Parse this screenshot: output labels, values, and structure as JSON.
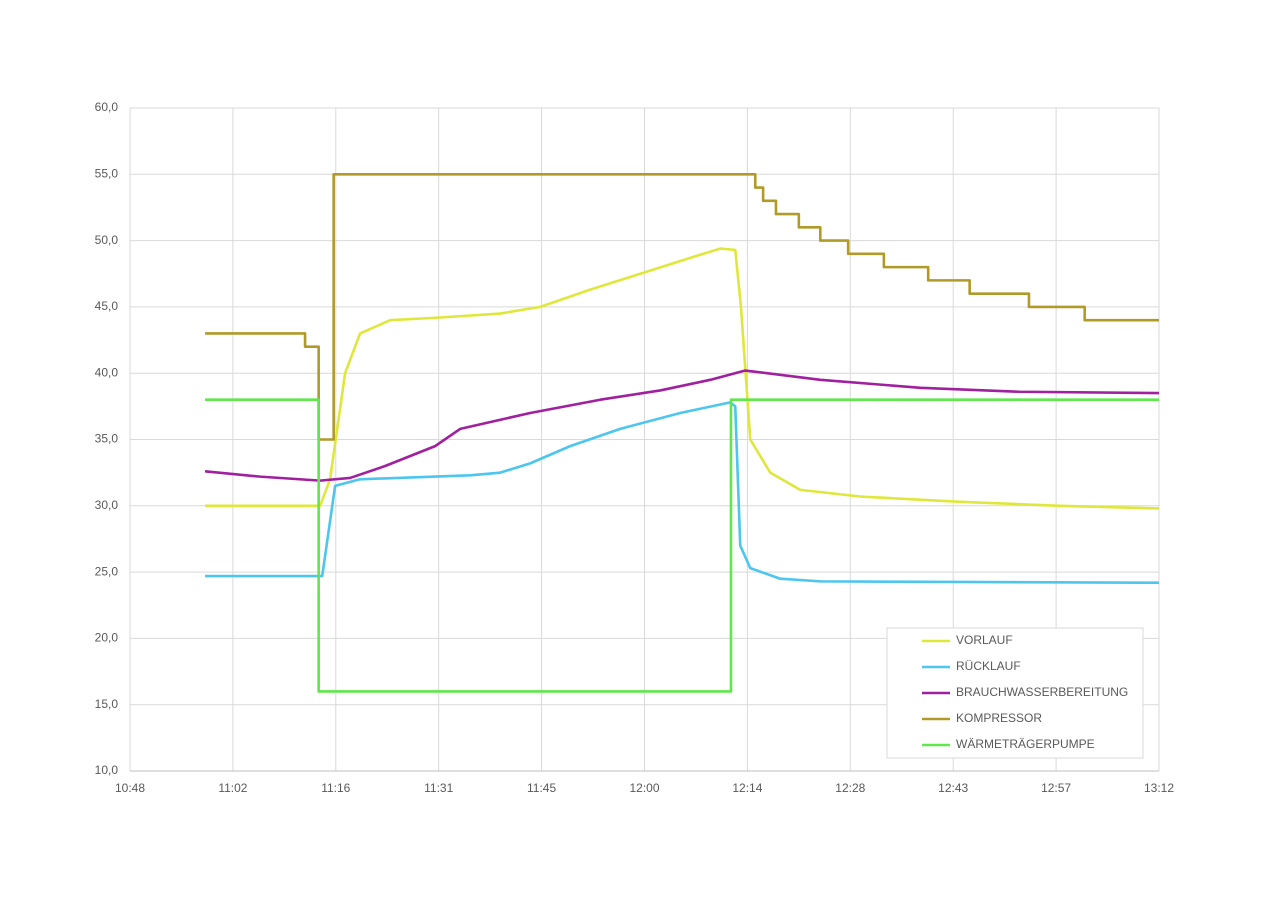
{
  "chart_data": {
    "type": "line",
    "xlim": [
      648,
      792
    ],
    "xticks": [
      {
        "value": 648,
        "label": "10:48"
      },
      {
        "value": 662.4,
        "label": "11:02"
      },
      {
        "value": 676.8,
        "label": "11:16"
      },
      {
        "value": 691.2,
        "label": "11:31"
      },
      {
        "value": 705.6,
        "label": "11:45"
      },
      {
        "value": 720,
        "label": "12:00"
      },
      {
        "value": 734.4,
        "label": "12:14"
      },
      {
        "value": 748.8,
        "label": "12:28"
      },
      {
        "value": 763.2,
        "label": "12:43"
      },
      {
        "value": 777.6,
        "label": "12:57"
      },
      {
        "value": 792,
        "label": "13:12"
      }
    ],
    "ylim": [
      10,
      60
    ],
    "yticks": [
      {
        "value": 10,
        "label": "10,0"
      },
      {
        "value": 15,
        "label": "15,0"
      },
      {
        "value": 20,
        "label": "20,0"
      },
      {
        "value": 25,
        "label": "25,0"
      },
      {
        "value": 30,
        "label": "30,0"
      },
      {
        "value": 35,
        "label": "35,0"
      },
      {
        "value": 40,
        "label": "40,0"
      },
      {
        "value": 45,
        "label": "45,0"
      },
      {
        "value": 50,
        "label": "50,0"
      },
      {
        "value": 55,
        "label": "55,0"
      },
      {
        "value": 60,
        "label": "60,0"
      }
    ],
    "grid": true,
    "legend": "lower right",
    "series": [
      {
        "name": "VORLAUF",
        "color": "#dfe83a",
        "x": [
          658.5,
          674.6,
          676.0,
          678.1,
          680.2,
          684.4,
          691.4,
          699.8,
          705.4,
          712.4,
          719.4,
          726.4,
          730.6,
          732.7,
          733.5,
          734.8,
          737.6,
          741.8,
          750.2,
          764.1,
          778.1,
          792
        ],
        "values": [
          30,
          30,
          32,
          40,
          43,
          44,
          44.2,
          44.5,
          45,
          46.3,
          47.5,
          48.7,
          49.4,
          49.3,
          45,
          35,
          32.5,
          31.2,
          30.7,
          30.3,
          30,
          29.8
        ]
      },
      {
        "name": "RÜCKLAUF",
        "color": "#4cc6ee",
        "x": [
          658.5,
          674.9,
          676.7,
          680.2,
          695.6,
          699.8,
          704.0,
          709.6,
          716.6,
          725.0,
          732.0,
          732.7,
          733.4,
          734.8,
          739.0,
          744.6,
          792
        ],
        "values": [
          24.7,
          24.7,
          31.5,
          32,
          32.3,
          32.5,
          33.2,
          34.5,
          35.8,
          37,
          37.8,
          37.5,
          27,
          25.3,
          24.5,
          24.3,
          24.2
        ]
      },
      {
        "name": "BRAUCHWASSERBEREITUNG",
        "color": "#a0209f",
        "x": [
          658.5,
          666.2,
          674.6,
          678.8,
          683.7,
          690.7,
          694.2,
          704.0,
          713.8,
          722.2,
          729.2,
          734.1,
          744.6,
          758.6,
          772.5,
          792
        ],
        "values": [
          32.6,
          32.2,
          31.9,
          32.1,
          33,
          34.5,
          35.8,
          37,
          38,
          38.7,
          39.5,
          40.2,
          39.5,
          38.9,
          38.6,
          38.5
        ]
      },
      {
        "name": "KOMPRESSOR",
        "color": "#b09a28",
        "x": [
          658.5,
          672.5,
          672.5,
          674.4,
          674.4,
          676.5,
          676.5,
          735.5,
          735.5,
          736.6,
          736.6,
          738.4,
          738.4,
          741.6,
          741.6,
          744.6,
          744.6,
          748.5,
          748.5,
          753.5,
          753.5,
          759.7,
          759.7,
          765.5,
          765.5,
          773.8,
          773.8,
          781.6,
          781.6,
          792
        ],
        "values": [
          43,
          43,
          42,
          42,
          35,
          35,
          55,
          55,
          54,
          54,
          53,
          53,
          52,
          52,
          51,
          51,
          50,
          50,
          49,
          49,
          48,
          48,
          47,
          47,
          46,
          46,
          45,
          45,
          44,
          44
        ]
      },
      {
        "name": "WÄRMETRÄGERPUMPE",
        "color": "#5ee84a",
        "x": [
          658.5,
          674.4,
          674.4,
          732.1,
          732.1,
          792
        ],
        "values": [
          38,
          38,
          16,
          16,
          38,
          38
        ]
      }
    ]
  }
}
